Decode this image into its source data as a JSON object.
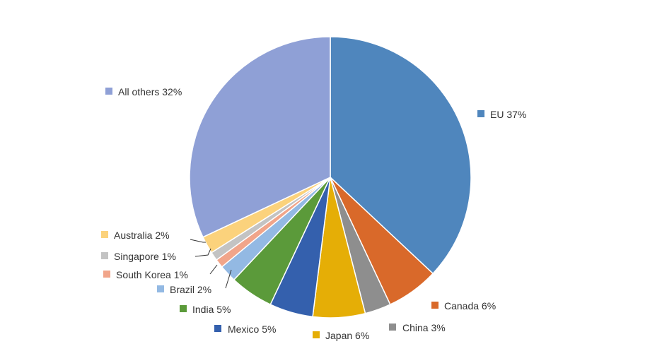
{
  "chart_data": {
    "type": "pie",
    "title": "",
    "slices": [
      {
        "name": "EU",
        "value": 37,
        "label": "EU 37%",
        "color": "#4f86bd"
      },
      {
        "name": "Canada",
        "value": 6,
        "label": "Canada 6%",
        "color": "#d9692a"
      },
      {
        "name": "China",
        "value": 3,
        "label": "China 3%",
        "color": "#8e8e8e"
      },
      {
        "name": "Japan",
        "value": 6,
        "label": "Japan 6%",
        "color": "#e5ae06"
      },
      {
        "name": "Mexico",
        "value": 5,
        "label": "Mexico 5%",
        "color": "#3460ad"
      },
      {
        "name": "India",
        "value": 5,
        "label": "India 5%",
        "color": "#5b9a3a"
      },
      {
        "name": "Brazil",
        "value": 2,
        "label": "Brazil 2%",
        "color": "#93b9e3"
      },
      {
        "name": "South Korea",
        "value": 1,
        "label": "South Korea 1%",
        "color": "#f1a58a"
      },
      {
        "name": "Singapore",
        "value": 1,
        "label": "Singapore 1%",
        "color": "#c3c3c3"
      },
      {
        "name": "Australia",
        "value": 2,
        "label": "Australia 2%",
        "color": "#fbd27c"
      },
      {
        "name": "All others",
        "value": 32,
        "label": "All others 32%",
        "color": "#8fa0d6"
      }
    ],
    "start_angle_deg": 0,
    "direction": "clockwise",
    "labels": "outside with color key"
  }
}
